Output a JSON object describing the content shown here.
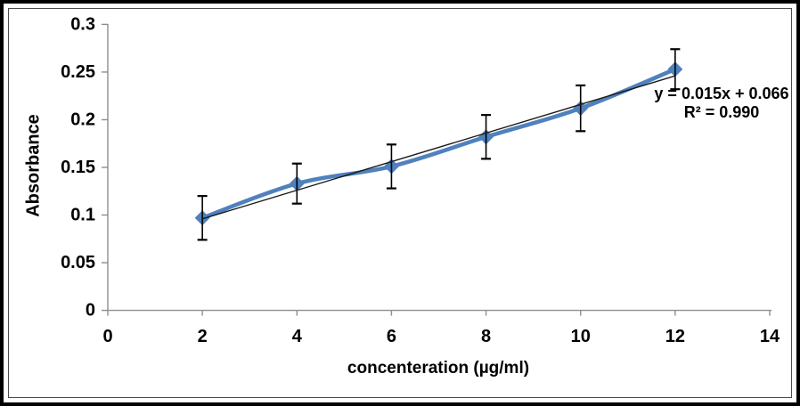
{
  "frame": {
    "outer_border_color": "#000000",
    "inner_border_color": "#4d4d4d",
    "background": "#ffffff"
  },
  "chart_data": {
    "type": "line",
    "title": "",
    "xlabel": "concenteration (µg/ml)",
    "ylabel": "Absorbance",
    "x": [
      2,
      4,
      6,
      8,
      10,
      12
    ],
    "series": [
      {
        "name": "Absorbance",
        "values": [
          0.097,
          0.133,
          0.151,
          0.182,
          0.212,
          0.253
        ],
        "color": "#4f81bd",
        "marker": "diamond",
        "line_style": "smooth-thick"
      }
    ],
    "error_bars": {
      "plus_minus": [
        0.023,
        0.021,
        0.023,
        0.023,
        0.024,
        0.021
      ],
      "color": "#000000"
    },
    "trendline": {
      "slope": 0.015,
      "intercept": 0.066,
      "x_start": 2,
      "x_end": 12,
      "color": "#1a1a1a"
    },
    "annotation": {
      "line1": "y = 0.015x + 0.066",
      "line2": "R² = 0.990"
    },
    "xlim": [
      0,
      14
    ],
    "ylim": [
      0,
      0.3
    ],
    "x_ticks": [
      0,
      2,
      4,
      6,
      8,
      10,
      12,
      14
    ],
    "x_tick_labels": [
      "0",
      "2",
      "4",
      "6",
      "8",
      "10",
      "12",
      "14"
    ],
    "y_ticks": [
      0,
      0.05,
      0.1,
      0.15,
      0.2,
      0.25,
      0.3
    ],
    "y_tick_labels": [
      "0",
      "0.05",
      "0.1",
      "0.15",
      "0.2",
      "0.25",
      "0.3"
    ],
    "grid": false,
    "legend": "none",
    "axis_color": "#8e8e8e",
    "text_color": "#000000"
  }
}
